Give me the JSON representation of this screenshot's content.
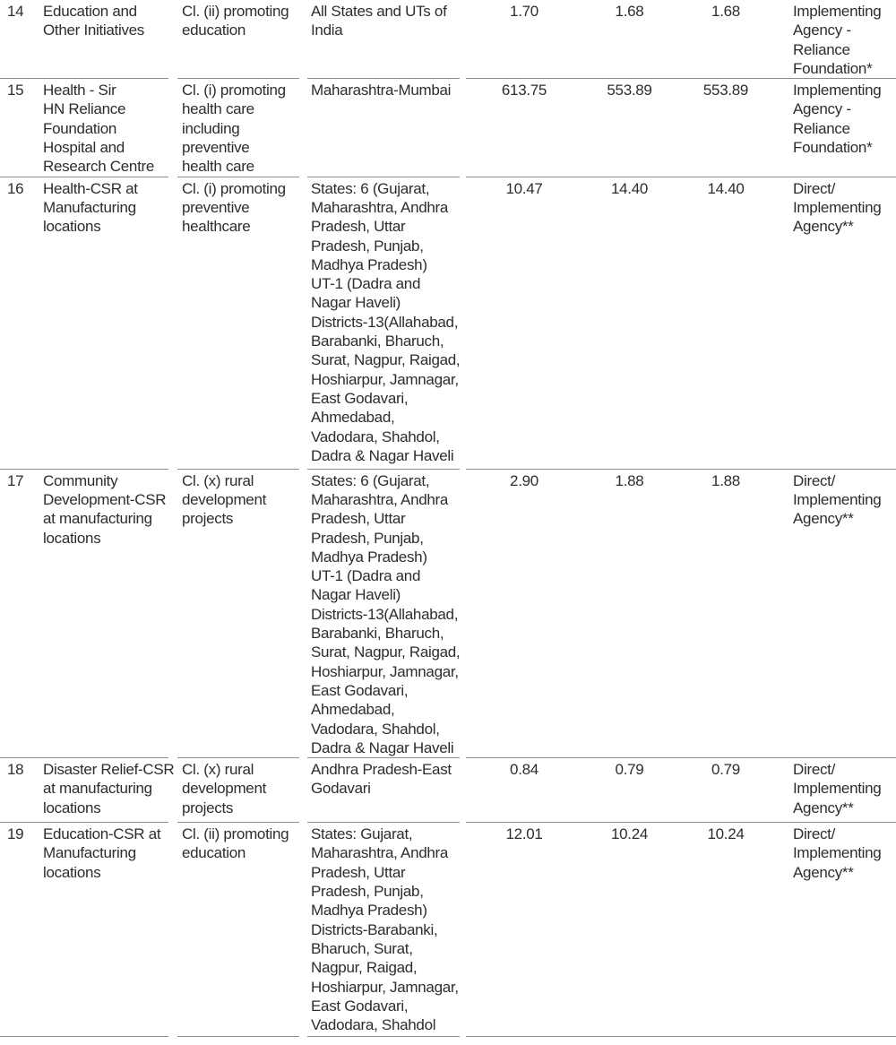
{
  "colors": {
    "text-color": "#2d2d2d",
    "rule-color": "#8f8f8f",
    "page-bg": "#ffffff"
  },
  "table": {
    "description": "CSR projects table fragment (serial numbers 14-19), columns: serial number, project/activity, sector clause, location, three amount figures, mode of implementation",
    "rows": [
      {
        "num": "14",
        "project": "Education and\nOther Initiatives",
        "sector": "Cl. (ii) promoting\neducation",
        "location": "All States and UTs of\nIndia",
        "amounts": [
          "1.70",
          "1.68",
          "1.68"
        ],
        "agency": "Implementing\nAgency -\nReliance\nFoundation*"
      },
      {
        "num": "15",
        "project": "Health - Sir\nHN Reliance\nFoundation\nHospital and\nResearch Centre",
        "sector": "Cl. (i) promoting\nhealth care\nincluding\npreventive\nhealth care",
        "location": "Maharashtra-Mumbai",
        "amounts": [
          "613.75",
          "553.89",
          "553.89"
        ],
        "agency": "Implementing\nAgency -\nReliance\nFoundation*"
      },
      {
        "num": "16",
        "project": "Health-CSR at\nManufacturing\nlocations",
        "sector": "Cl. (i) promoting\npreventive\nhealthcare",
        "location": "States: 6 (Gujarat,\nMaharashtra, Andhra\nPradesh, Uttar\nPradesh, Punjab,\nMadhya Pradesh)\nUT-1 (Dadra and\nNagar Haveli)\nDistricts-13(Allahabad,\nBarabanki, Bharuch,\nSurat, Nagpur, Raigad,\nHoshiarpur, Jamnagar,\nEast Godavari,\nAhmedabad,\nVadodara, Shahdol,\nDadra & Nagar Haveli",
        "amounts": [
          "10.47",
          "14.40",
          "14.40"
        ],
        "agency": "Direct/\nImplementing\nAgency**"
      },
      {
        "num": "17",
        "project": "Community\nDevelopment-CSR\nat manufacturing\nlocations",
        "sector": "Cl. (x) rural\ndevelopment\nprojects",
        "location": "States: 6 (Gujarat,\nMaharashtra, Andhra\nPradesh, Uttar\nPradesh, Punjab,\nMadhya Pradesh)\nUT-1 (Dadra and\nNagar Haveli)\nDistricts-13(Allahabad,\nBarabanki, Bharuch,\nSurat, Nagpur, Raigad,\nHoshiarpur, Jamnagar,\nEast Godavari,\nAhmedabad,\nVadodara, Shahdol,\nDadra & Nagar Haveli",
        "amounts": [
          "2.90",
          "1.88",
          "1.88"
        ],
        "agency": "Direct/\nImplementing\nAgency**"
      },
      {
        "num": "18",
        "project": "Disaster Relief-CSR\nat manufacturing\nlocations",
        "sector": "Cl. (x) rural\ndevelopment\nprojects",
        "location": "Andhra Pradesh-East\nGodavari",
        "amounts": [
          "0.84",
          "0.79",
          "0.79"
        ],
        "agency": "Direct/\nImplementing\nAgency**"
      },
      {
        "num": "19",
        "project": "Education-CSR at\nManufacturing\nlocations",
        "sector": "Cl. (ii) promoting\neducation",
        "location": "States: Gujarat,\nMaharashtra, Andhra\nPradesh, Uttar\nPradesh, Punjab,\nMadhya Pradesh)\nDistricts-Barabanki,\nBharuch, Surat,\nNagpur, Raigad,\nHoshiarpur, Jamnagar,\nEast Godavari,\nVadodara, Shahdol",
        "amounts": [
          "12.01",
          "10.24",
          "10.24"
        ],
        "agency": "Direct/\nImplementing\nAgency**"
      }
    ]
  }
}
